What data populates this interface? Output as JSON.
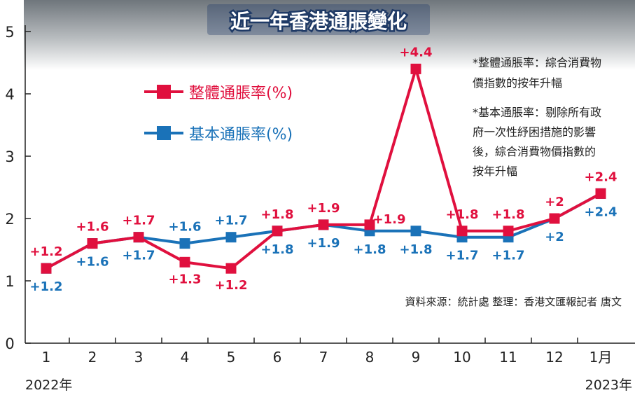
{
  "title": "近一年香港通脹變化",
  "note_headline": "*整體通脹率：綜合消費物價指數的按年升幅",
  "note_headline_lines": [
    "*整體通脹率：綜合消費物",
    "價指數的按年升幅"
  ],
  "note_core": "*基本通脹率：剔除所有政府一次性紓困措施的影響後，綜合消費物價指數的按年升幅",
  "note_core_lines": [
    "*基本通脹率：剔除所有政",
    "府一次性紓困措施的影響",
    "後，綜合消費物價指數的",
    "按年升幅"
  ],
  "source": "資料來源：統計處 整理：香港文匯報記者 唐文",
  "year_start": "2022年",
  "year_end": "2023年",
  "colors": {
    "headline": "#e0103e",
    "core": "#1a72b8",
    "axis": "#222222",
    "photo_band": "#8a8f94"
  },
  "chart_data": {
    "type": "line",
    "categories": [
      "1",
      "2",
      "3",
      "4",
      "5",
      "6",
      "7",
      "8",
      "9",
      "10",
      "11",
      "12",
      "1月"
    ],
    "ylim": [
      0,
      5
    ],
    "yticks": [
      "0",
      "1",
      "2",
      "3",
      "4",
      "5"
    ],
    "grid": false,
    "legend_position": "upper-left",
    "series": [
      {
        "name": "整體通脹率(%)",
        "color": "#e0103e",
        "values": [
          1.2,
          1.6,
          1.7,
          1.3,
          1.2,
          1.8,
          1.9,
          1.9,
          4.4,
          1.8,
          1.8,
          2.0,
          2.4
        ],
        "labels": [
          "+1.2",
          "+1.6",
          "+1.7",
          "+1.3",
          "+1.2",
          "+1.8",
          "+1.9",
          "+1.9",
          "+4.4",
          "+1.8",
          "+1.8",
          "+2",
          "+2.4"
        ]
      },
      {
        "name": "基本通脹率(%)",
        "color": "#1a72b8",
        "values": [
          1.2,
          1.6,
          1.7,
          1.6,
          1.7,
          1.8,
          1.9,
          1.8,
          1.8,
          1.7,
          1.7,
          2.0,
          2.4
        ],
        "labels": [
          "+1.2",
          "+1.6",
          "+1.7",
          "+1.6",
          "+1.7",
          "+1.8",
          "+1.9",
          "+1.8",
          "+1.8",
          "+1.7",
          "+1.7",
          "+2",
          "+2.4"
        ]
      }
    ]
  }
}
